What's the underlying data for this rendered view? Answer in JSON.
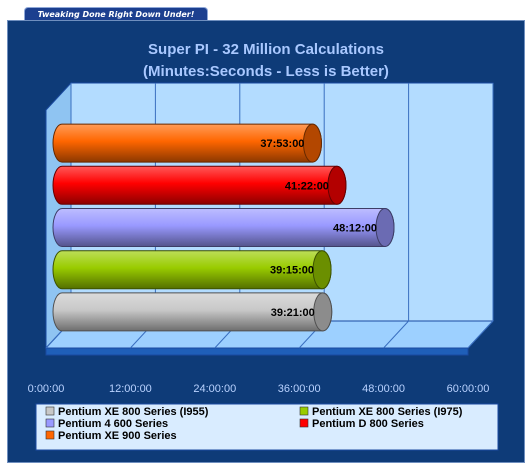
{
  "banner": {
    "text": "Tweaking Done Right Down Under!"
  },
  "chart_data": {
    "type": "bar",
    "orientation": "horizontal",
    "title": "Super PI - 32 Million Calculations",
    "subtitle": "(Minutes:Seconds - Less is Better)",
    "xlim": [
      0,
      60
    ],
    "x_ticks": [
      "0:00:00",
      "12:00:00",
      "24:00:00",
      "36:00:00",
      "48:00:00",
      "60:00:00"
    ],
    "grid": true,
    "legend_position": "bottom",
    "series": [
      {
        "name": "Pentium XE 800 Series (I955)",
        "value": 39.35,
        "label": "39:21:00",
        "color": "#c8c8c8"
      },
      {
        "name": "Pentium XE 800 Series (I975)",
        "value": 39.25,
        "label": "39:15:00",
        "color": "#99cc00"
      },
      {
        "name": "Pentium 4 600 Series",
        "value": 48.2,
        "label": "48:12:00",
        "color": "#9999ff"
      },
      {
        "name": "Pentium D 800 Series",
        "value": 41.367,
        "label": "41:22:00",
        "color": "#ff0000"
      },
      {
        "name": "Pentium XE 900 Series",
        "value": 37.883,
        "label": "37:53:00",
        "color": "#ff6600"
      }
    ]
  }
}
